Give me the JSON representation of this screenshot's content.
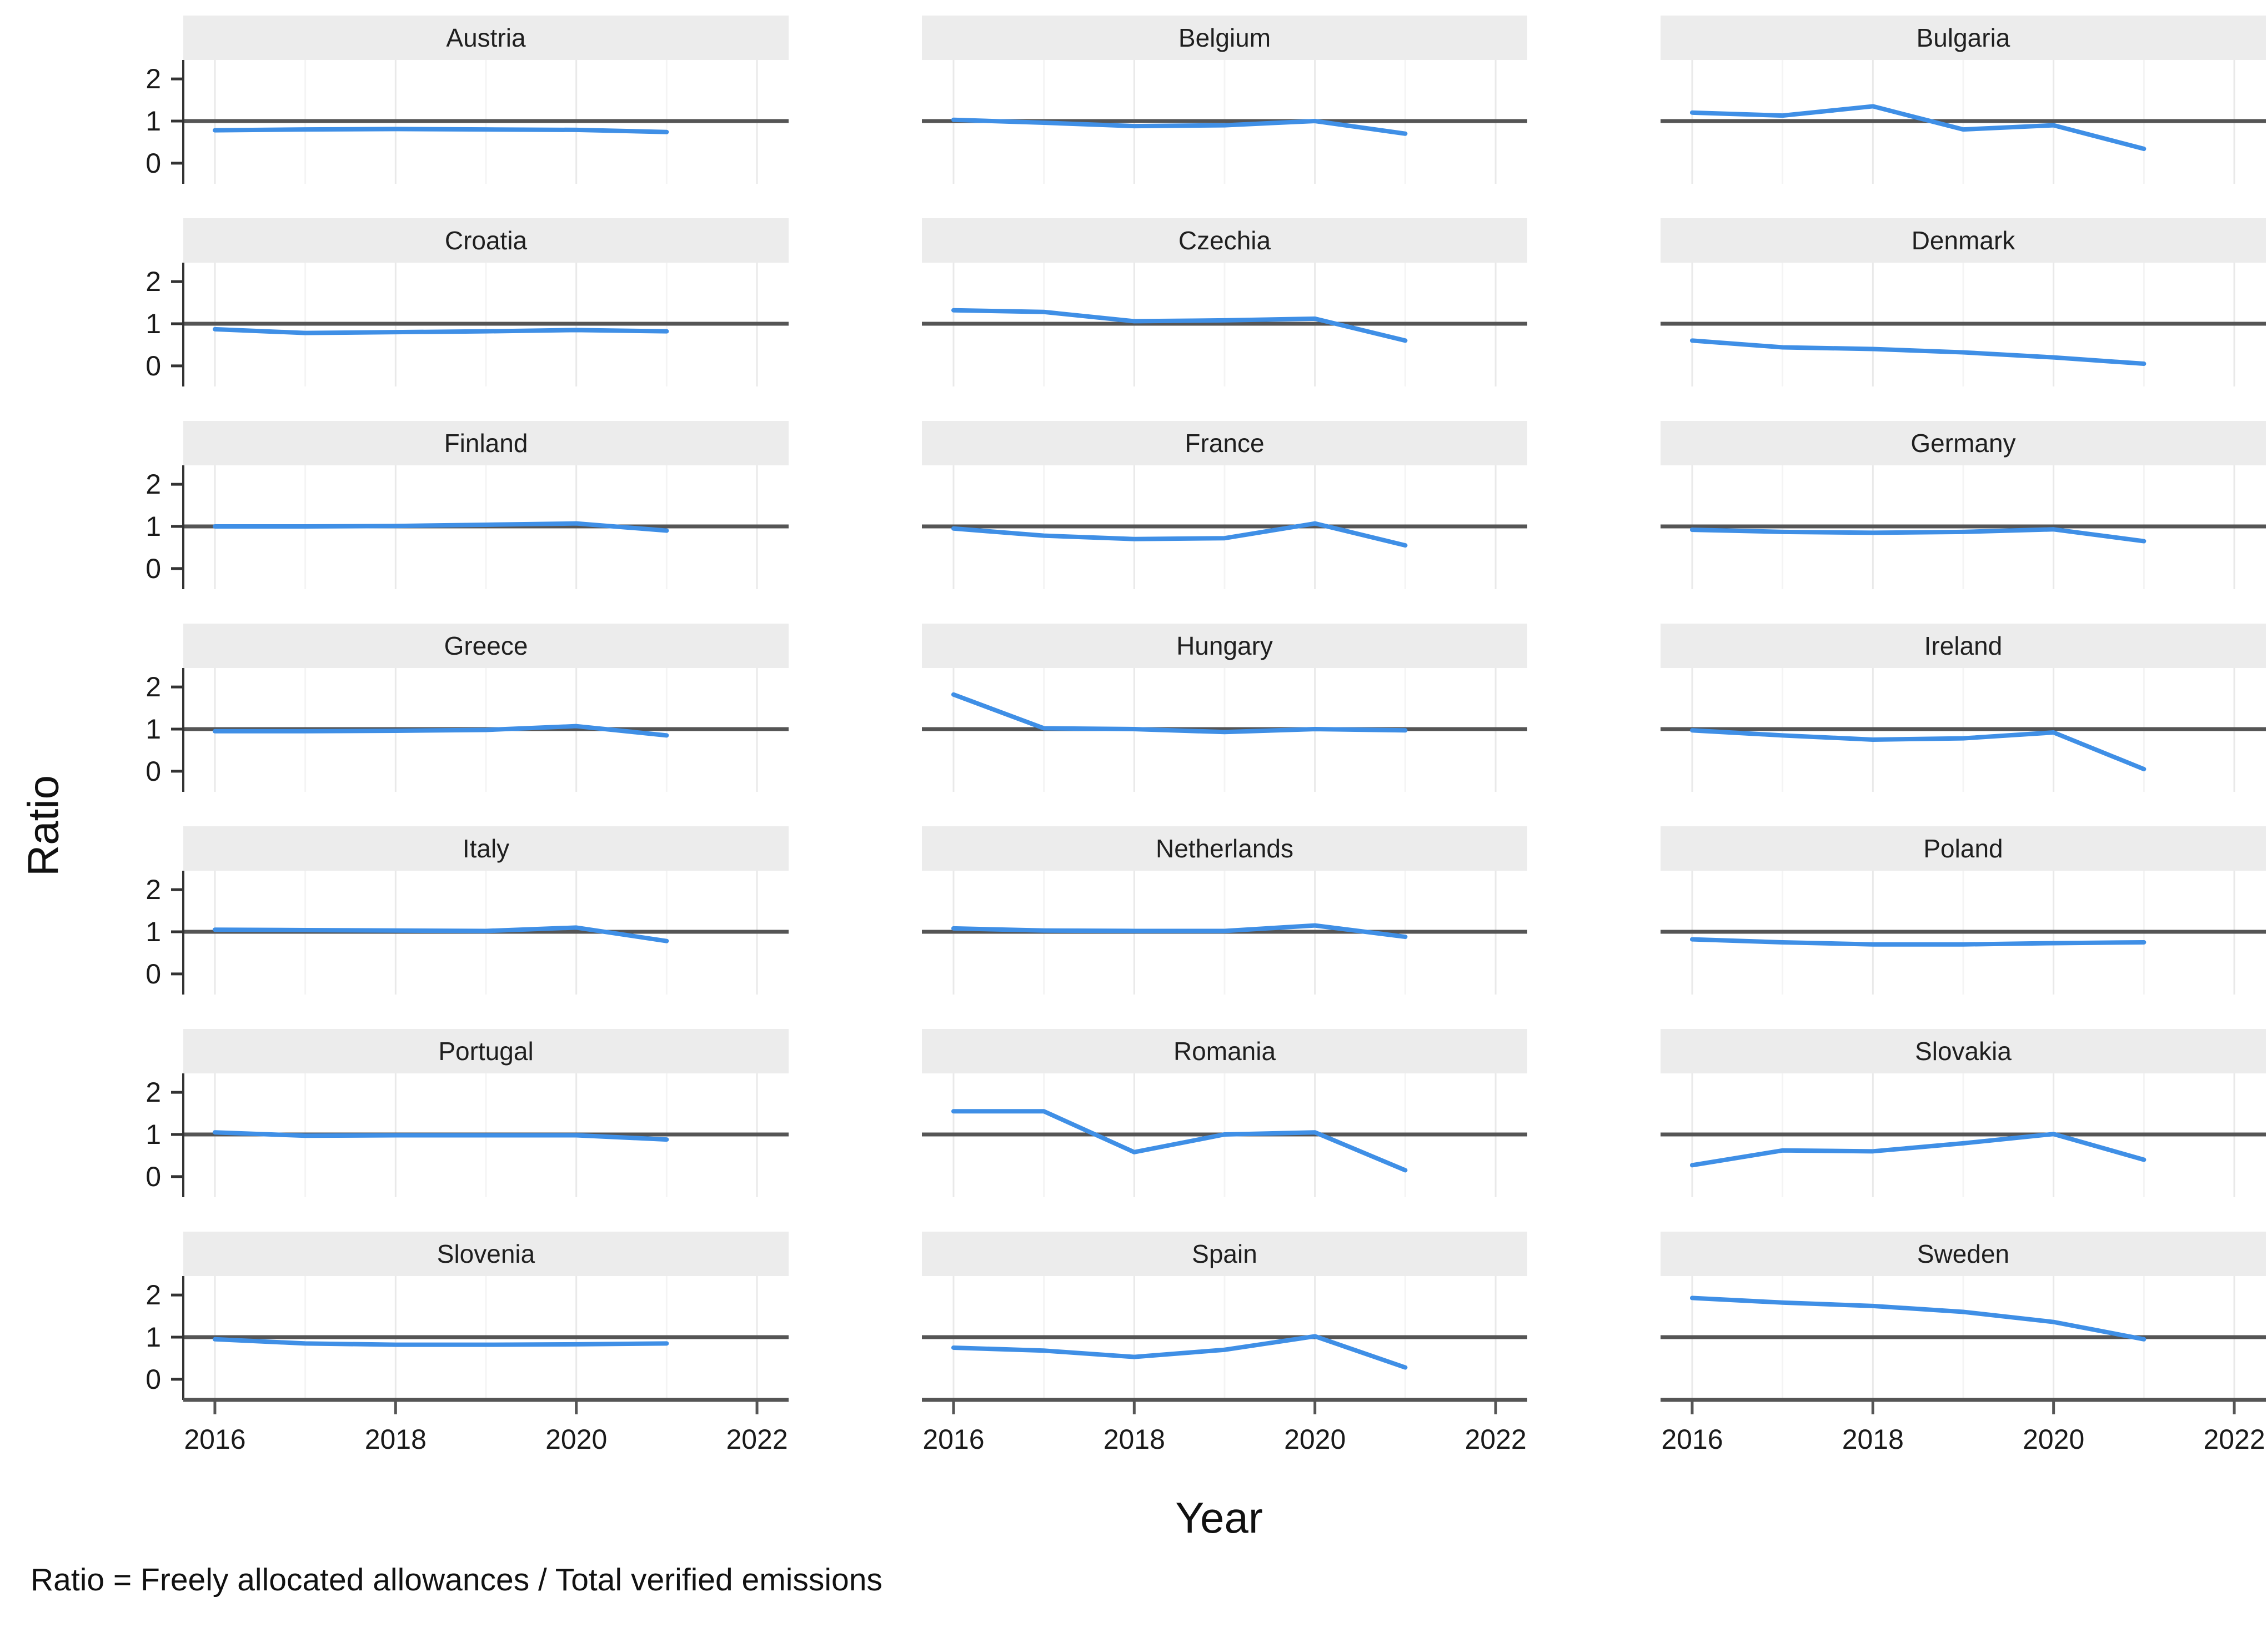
{
  "figure": {
    "ylabel": "Ratio",
    "xlabel": "Year",
    "caption": "Ratio = Freely allocated allowances / Total verified emissions"
  },
  "chart_data": {
    "type": "line",
    "title": "",
    "xlabel": "Year",
    "ylabel": "Ratio",
    "layout": {
      "rows": 7,
      "cols": 3,
      "legend": "none",
      "grid": "vertical-only",
      "strip_position": "top"
    },
    "x": [
      2016,
      2017,
      2018,
      2019,
      2020,
      2021
    ],
    "x_ticks": [
      2016,
      2018,
      2020,
      2022
    ],
    "x_grid_minor": [
      2017,
      2019,
      2021
    ],
    "x_range": [
      2015.65,
      2022.35
    ],
    "y_ticks": [
      0,
      1,
      2
    ],
    "y_range": [
      -0.49,
      2.45
    ],
    "reference_line_y": 1,
    "colors": {
      "line": "#3F8FE6",
      "reference": "#555555",
      "strip_bg": "#ECECEC",
      "grid_major": "#E9E9E9",
      "grid_minor": "#F4F4F4",
      "y_axis": "#333333",
      "x_axis": "#555555",
      "tick_label": "#1a1a1a"
    },
    "facets": [
      {
        "name": "Austria",
        "values": [
          0.78,
          0.8,
          0.81,
          0.8,
          0.79,
          0.74
        ]
      },
      {
        "name": "Belgium",
        "values": [
          1.03,
          0.96,
          0.88,
          0.9,
          1.0,
          0.7
        ]
      },
      {
        "name": "Bulgaria",
        "values": [
          1.2,
          1.13,
          1.35,
          0.8,
          0.9,
          0.34
        ]
      },
      {
        "name": "Croatia",
        "values": [
          0.87,
          0.78,
          0.8,
          0.82,
          0.85,
          0.82
        ]
      },
      {
        "name": "Czechia",
        "values": [
          1.32,
          1.28,
          1.06,
          1.08,
          1.12,
          0.6
        ]
      },
      {
        "name": "Denmark",
        "values": [
          0.6,
          0.44,
          0.4,
          0.32,
          0.2,
          0.05
        ]
      },
      {
        "name": "Finland",
        "values": [
          1.0,
          1.0,
          1.01,
          1.04,
          1.07,
          0.9
        ]
      },
      {
        "name": "France",
        "values": [
          0.95,
          0.78,
          0.7,
          0.72,
          1.07,
          0.55
        ]
      },
      {
        "name": "Germany",
        "values": [
          0.92,
          0.87,
          0.85,
          0.87,
          0.93,
          0.65
        ]
      },
      {
        "name": "Greece",
        "values": [
          0.95,
          0.95,
          0.96,
          0.98,
          1.07,
          0.85
        ]
      },
      {
        "name": "Hungary",
        "values": [
          1.82,
          1.02,
          1.0,
          0.93,
          1.0,
          0.97
        ]
      },
      {
        "name": "Ireland",
        "values": [
          0.97,
          0.85,
          0.75,
          0.78,
          0.92,
          0.05
        ]
      },
      {
        "name": "Italy",
        "values": [
          1.05,
          1.04,
          1.03,
          1.02,
          1.1,
          0.78
        ]
      },
      {
        "name": "Netherlands",
        "values": [
          1.08,
          1.03,
          1.02,
          1.02,
          1.15,
          0.88
        ]
      },
      {
        "name": "Poland",
        "values": [
          0.82,
          0.75,
          0.7,
          0.7,
          0.73,
          0.75
        ]
      },
      {
        "name": "Portugal",
        "values": [
          1.05,
          0.97,
          0.98,
          0.98,
          0.98,
          0.88
        ]
      },
      {
        "name": "Romania",
        "values": [
          1.55,
          1.55,
          0.58,
          1.0,
          1.05,
          0.15
        ]
      },
      {
        "name": "Slovakia",
        "values": [
          0.27,
          0.62,
          0.6,
          0.79,
          1.01,
          0.4
        ]
      },
      {
        "name": "Slovenia",
        "values": [
          0.95,
          0.85,
          0.82,
          0.82,
          0.83,
          0.85
        ]
      },
      {
        "name": "Spain",
        "values": [
          0.75,
          0.68,
          0.53,
          0.7,
          1.02,
          0.28
        ]
      },
      {
        "name": "Sweden",
        "values": [
          1.93,
          1.82,
          1.74,
          1.6,
          1.36,
          0.95
        ]
      }
    ]
  }
}
